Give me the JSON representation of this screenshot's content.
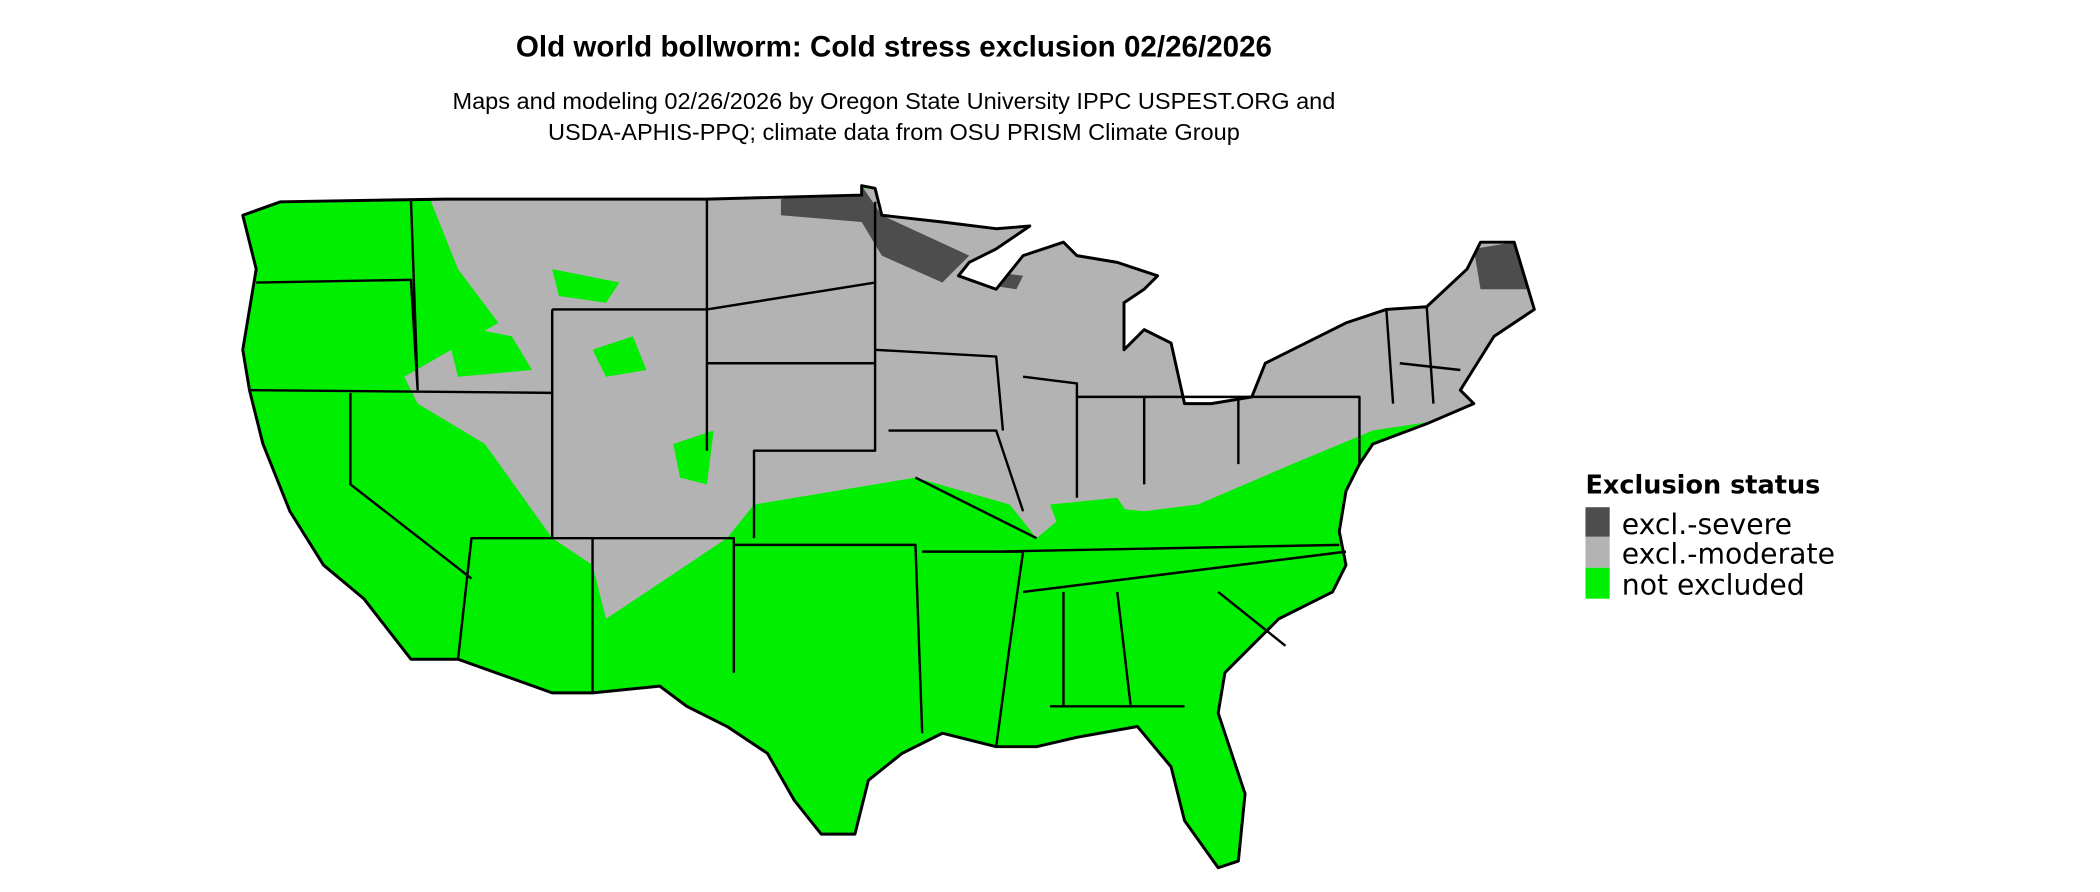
{
  "title": "Old world bollworm: Cold stress exclusion 02/26/2026",
  "subtitle_line1": "Maps and modeling 02/26/2026 by Oregon State University IPPC USPEST.ORG and",
  "subtitle_line2": "USDA-APHIS-PPQ; climate data from OSU PRISM Climate Group",
  "map": {
    "region": "Contiguous United States",
    "layer": "Cold stress exclusion"
  },
  "legend": {
    "title": "Exclusion status",
    "items": [
      {
        "label": "excl.-severe",
        "color": "#4d4d4d"
      },
      {
        "label": "excl.-moderate",
        "color": "#b3b3b3"
      },
      {
        "label": "not excluded",
        "color": "#00ee00"
      }
    ]
  }
}
